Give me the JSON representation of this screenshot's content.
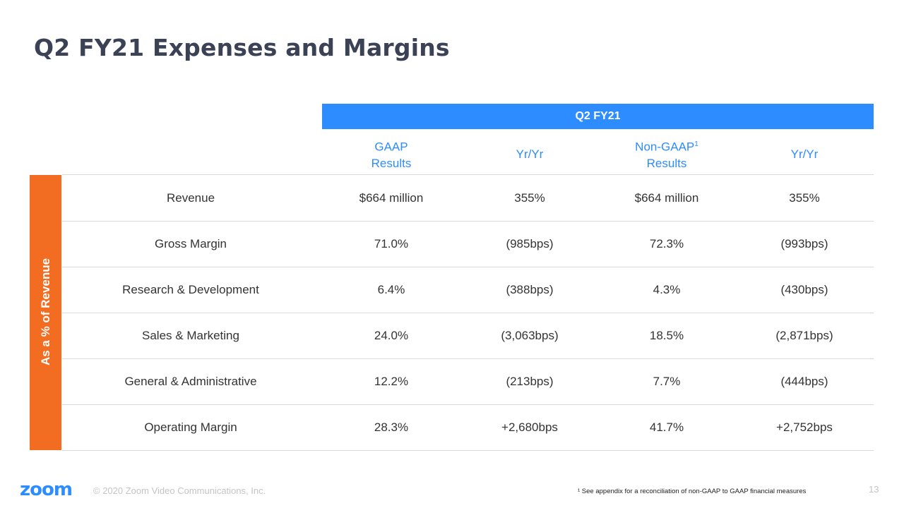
{
  "title": "Q2 FY21 Expenses and Margins",
  "period": "Q2 FY21",
  "columns": [
    {
      "line1": "GAAP",
      "line2": "Results",
      "sup": ""
    },
    {
      "line1": "Yr/Yr",
      "line2": "",
      "sup": ""
    },
    {
      "line1": "Non-GAAP",
      "line2": "Results",
      "sup": "1"
    },
    {
      "line1": "Yr/Yr",
      "line2": "",
      "sup": ""
    }
  ],
  "side_label": "As a % of Revenue",
  "rows": [
    {
      "label": "Revenue",
      "gaap": "$664 million",
      "gaap_yoy": "355%",
      "nongaap": "$664 million",
      "nongaap_yoy": "355%"
    },
    {
      "label": "Gross Margin",
      "gaap": "71.0%",
      "gaap_yoy": "(985bps)",
      "nongaap": "72.3%",
      "nongaap_yoy": "(993bps)"
    },
    {
      "label": "Research & Development",
      "gaap": "6.4%",
      "gaap_yoy": "(388bps)",
      "nongaap": "4.3%",
      "nongaap_yoy": "(430bps)"
    },
    {
      "label": "Sales & Marketing",
      "gaap": "24.0%",
      "gaap_yoy": "(3,063bps)",
      "nongaap": "18.5%",
      "nongaap_yoy": "(2,871bps)"
    },
    {
      "label": "General & Administrative",
      "gaap": "12.2%",
      "gaap_yoy": "(213bps)",
      "nongaap": "7.7%",
      "nongaap_yoy": "(444bps)"
    },
    {
      "label": "Operating Margin",
      "gaap": "28.3%",
      "gaap_yoy": "+2,680bps",
      "nongaap": "41.7%",
      "nongaap_yoy": "+2,752bps"
    }
  ],
  "footer": {
    "logo": "zoom",
    "copyright": "© 2020 Zoom Video Communications, Inc.",
    "footnote": "¹ See appendix for a reconciliation of non-GAAP to GAAP financial measures",
    "page_number": "13"
  },
  "colors": {
    "title": "#3b4256",
    "accent_blue": "#2d8cff",
    "accent_orange": "#f26d21"
  }
}
